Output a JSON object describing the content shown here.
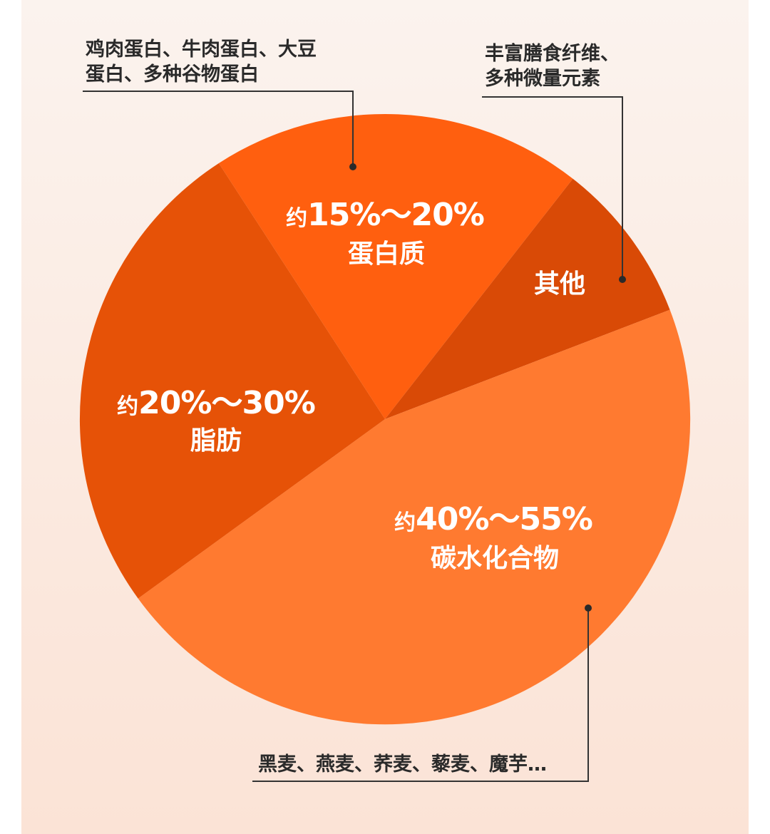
{
  "chart_data": {
    "type": "pie",
    "slices": [
      {
        "key": "protein",
        "prefix": "约",
        "range": "15%～20%",
        "min": 15,
        "max": 20,
        "label": "蛋白质",
        "color": "#ff5f0f",
        "note": [
          "鸡肉蛋白、牛肉蛋白、大豆",
          "蛋白、多种谷物蛋白"
        ]
      },
      {
        "key": "other",
        "prefix": "",
        "range": "",
        "label": "其他",
        "color": "#d94a06",
        "note": [
          "丰富膳食纤维、",
          "多种微量元素"
        ]
      },
      {
        "key": "carb",
        "prefix": "约",
        "range": "40%～55%",
        "min": 40,
        "max": 55,
        "label": "碳水化合物",
        "color": "#ff7a30",
        "note": [
          "黑麦、燕麦、荞麦、藜麦、魔芋…"
        ]
      },
      {
        "key": "fat",
        "prefix": "约",
        "range": "20%～30%",
        "min": 20,
        "max": 30,
        "label": "脂肪",
        "color": "#e65207",
        "note": []
      }
    ],
    "legend": "none"
  },
  "colors": {
    "background": "#fbf0ea",
    "note_text": "#2a2a2a",
    "slice_text": "#ffffff"
  }
}
